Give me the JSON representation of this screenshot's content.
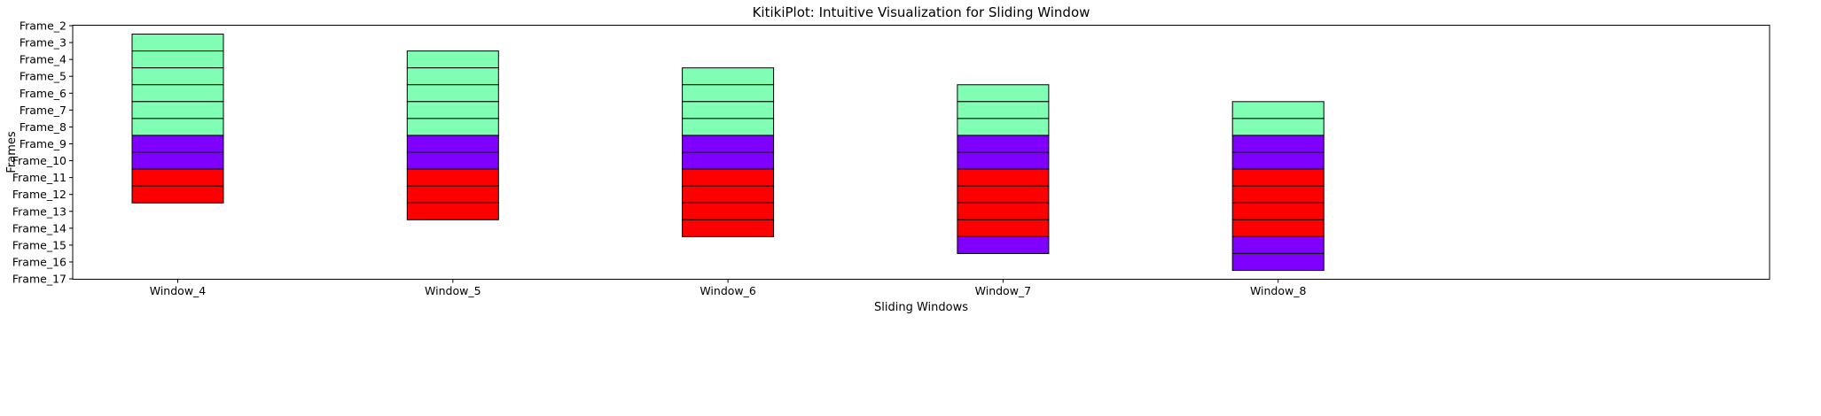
{
  "chart_data": {
    "type": "bar",
    "title": "KitikiPlot: Intuitive Visualization for Sliding Window",
    "xlabel": "Sliding Windows",
    "ylabel": "Frames",
    "categories": [
      "Window_4",
      "Window_5",
      "Window_6",
      "Window_7",
      "Window_8"
    ],
    "y_ticks": [
      "Frame_2",
      "Frame_3",
      "Frame_4",
      "Frame_5",
      "Frame_6",
      "Frame_7",
      "Frame_8",
      "Frame_9",
      "Frame_10",
      "Frame_11",
      "Frame_12",
      "Frame_13",
      "Frame_14",
      "Frame_15",
      "Frame_16",
      "Frame_17"
    ],
    "ylim": [
      2,
      17
    ],
    "grid": false,
    "colors": {
      "green": "#80ffb4",
      "purple": "#8000ff",
      "red": "#ff0000",
      "edge": "#000000"
    },
    "windows": [
      {
        "name": "Window_4",
        "cells": [
          {
            "frame": 3,
            "color": "green"
          },
          {
            "frame": 4,
            "color": "green"
          },
          {
            "frame": 5,
            "color": "green"
          },
          {
            "frame": 6,
            "color": "green"
          },
          {
            "frame": 7,
            "color": "green"
          },
          {
            "frame": 8,
            "color": "green"
          },
          {
            "frame": 9,
            "color": "purple"
          },
          {
            "frame": 10,
            "color": "purple"
          },
          {
            "frame": 11,
            "color": "red"
          },
          {
            "frame": 12,
            "color": "red"
          }
        ]
      },
      {
        "name": "Window_5",
        "cells": [
          {
            "frame": 4,
            "color": "green"
          },
          {
            "frame": 5,
            "color": "green"
          },
          {
            "frame": 6,
            "color": "green"
          },
          {
            "frame": 7,
            "color": "green"
          },
          {
            "frame": 8,
            "color": "green"
          },
          {
            "frame": 9,
            "color": "purple"
          },
          {
            "frame": 10,
            "color": "purple"
          },
          {
            "frame": 11,
            "color": "red"
          },
          {
            "frame": 12,
            "color": "red"
          },
          {
            "frame": 13,
            "color": "red"
          }
        ]
      },
      {
        "name": "Window_6",
        "cells": [
          {
            "frame": 5,
            "color": "green"
          },
          {
            "frame": 6,
            "color": "green"
          },
          {
            "frame": 7,
            "color": "green"
          },
          {
            "frame": 8,
            "color": "green"
          },
          {
            "frame": 9,
            "color": "purple"
          },
          {
            "frame": 10,
            "color": "purple"
          },
          {
            "frame": 11,
            "color": "red"
          },
          {
            "frame": 12,
            "color": "red"
          },
          {
            "frame": 13,
            "color": "red"
          },
          {
            "frame": 14,
            "color": "red"
          }
        ]
      },
      {
        "name": "Window_7",
        "cells": [
          {
            "frame": 6,
            "color": "green"
          },
          {
            "frame": 7,
            "color": "green"
          },
          {
            "frame": 8,
            "color": "green"
          },
          {
            "frame": 9,
            "color": "purple"
          },
          {
            "frame": 10,
            "color": "purple"
          },
          {
            "frame": 11,
            "color": "red"
          },
          {
            "frame": 12,
            "color": "red"
          },
          {
            "frame": 13,
            "color": "red"
          },
          {
            "frame": 14,
            "color": "red"
          },
          {
            "frame": 15,
            "color": "purple"
          }
        ]
      },
      {
        "name": "Window_8",
        "cells": [
          {
            "frame": 7,
            "color": "green"
          },
          {
            "frame": 8,
            "color": "green"
          },
          {
            "frame": 9,
            "color": "purple"
          },
          {
            "frame": 10,
            "color": "purple"
          },
          {
            "frame": 11,
            "color": "red"
          },
          {
            "frame": 12,
            "color": "red"
          },
          {
            "frame": 13,
            "color": "red"
          },
          {
            "frame": 14,
            "color": "red"
          },
          {
            "frame": 15,
            "color": "purple"
          },
          {
            "frame": 16,
            "color": "purple"
          }
        ]
      }
    ]
  }
}
